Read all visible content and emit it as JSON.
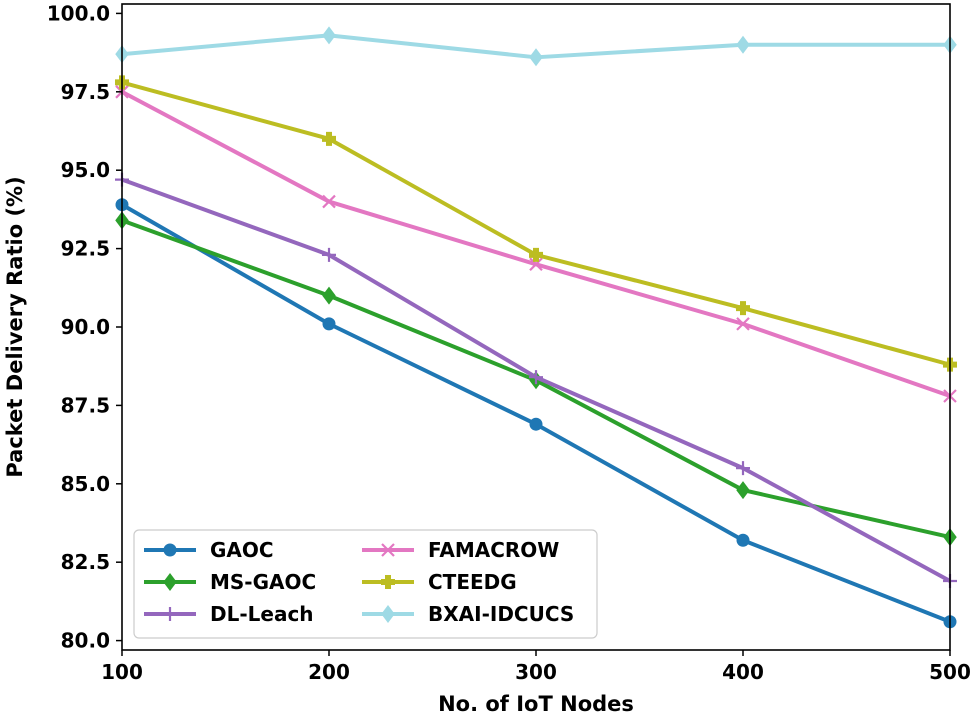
{
  "chart_data": {
    "type": "line",
    "title": "",
    "xlabel": "No. of IoT Nodes",
    "ylabel": "Packet Delivery Ratio (%)",
    "x": [
      100,
      200,
      300,
      400,
      500
    ],
    "x_ticks": [
      "100",
      "200",
      "300",
      "400",
      "500"
    ],
    "y_ticks": [
      "80.0",
      "82.5",
      "85.0",
      "87.5",
      "90.0",
      "92.5",
      "95.0",
      "97.5",
      "100.0"
    ],
    "y_tick_values": [
      80.0,
      82.5,
      85.0,
      87.5,
      90.0,
      92.5,
      95.0,
      97.5,
      100.0
    ],
    "xlim": [
      100,
      500
    ],
    "ylim": [
      79.7,
      100.3
    ],
    "grid": false,
    "legend_position": "lower-left",
    "series": [
      {
        "name": "GAOC",
        "color": "#1f77b4",
        "marker": "circle",
        "values": [
          93.9,
          90.1,
          86.9,
          83.2,
          80.6
        ]
      },
      {
        "name": "MS-GAOC",
        "color": "#2ca02c",
        "marker": "diamond",
        "values": [
          93.4,
          91.0,
          88.3,
          84.8,
          83.3
        ]
      },
      {
        "name": "DL-Leach",
        "color": "#9467bd",
        "marker": "plus",
        "values": [
          94.7,
          92.3,
          88.4,
          85.5,
          81.9
        ]
      },
      {
        "name": "FAMACROW",
        "color": "#e377c2",
        "marker": "x",
        "values": [
          97.5,
          94.0,
          92.0,
          90.1,
          87.8
        ]
      },
      {
        "name": "CTEEDG",
        "color": "#bcbd22",
        "marker": "plusfilled",
        "values": [
          97.8,
          96.0,
          92.3,
          90.6,
          88.8
        ]
      },
      {
        "name": "BXAI-IDCUCS",
        "color": "#9edae5",
        "marker": "diamond",
        "values": [
          98.7,
          99.3,
          98.6,
          99.0,
          99.0
        ]
      }
    ]
  }
}
